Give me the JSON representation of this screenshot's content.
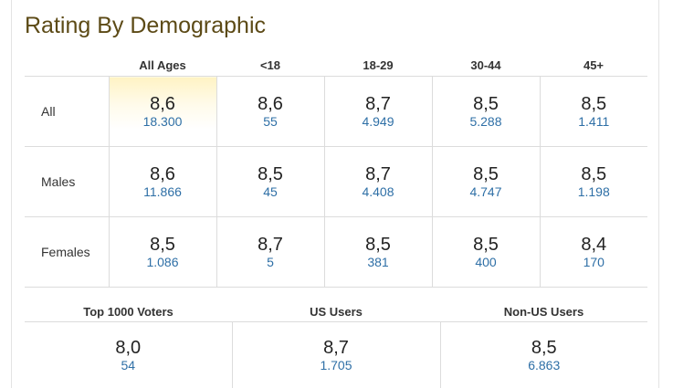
{
  "title": "Rating By Demographic",
  "columns": [
    "All Ages",
    "<18",
    "18-29",
    "30-44",
    "45+"
  ],
  "rows": [
    {
      "label": "All",
      "cells": [
        {
          "rating": "8,6",
          "votes": "18.300"
        },
        {
          "rating": "8,6",
          "votes": "55"
        },
        {
          "rating": "8,7",
          "votes": "4.949"
        },
        {
          "rating": "8,5",
          "votes": "5.288"
        },
        {
          "rating": "8,5",
          "votes": "1.411"
        }
      ]
    },
    {
      "label": "Males",
      "cells": [
        {
          "rating": "8,6",
          "votes": "11.866"
        },
        {
          "rating": "8,5",
          "votes": "45"
        },
        {
          "rating": "8,7",
          "votes": "4.408"
        },
        {
          "rating": "8,5",
          "votes": "4.747"
        },
        {
          "rating": "8,5",
          "votes": "1.198"
        }
      ]
    },
    {
      "label": "Females",
      "cells": [
        {
          "rating": "8,5",
          "votes": "1.086"
        },
        {
          "rating": "8,7",
          "votes": "5"
        },
        {
          "rating": "8,5",
          "votes": "381"
        },
        {
          "rating": "8,5",
          "votes": "400"
        },
        {
          "rating": "8,4",
          "votes": "170"
        }
      ]
    }
  ],
  "groups": [
    {
      "label": "Top 1000 Voters",
      "rating": "8,0",
      "votes": "54"
    },
    {
      "label": "US Users",
      "rating": "8,7",
      "votes": "1.705"
    },
    {
      "label": "Non-US Users",
      "rating": "8,5",
      "votes": "6.863"
    }
  ],
  "colors": {
    "title": "#5c4a16",
    "votes_link": "#2e6fa6",
    "highlight": "#fff3c4",
    "border": "#dcdcdc"
  }
}
